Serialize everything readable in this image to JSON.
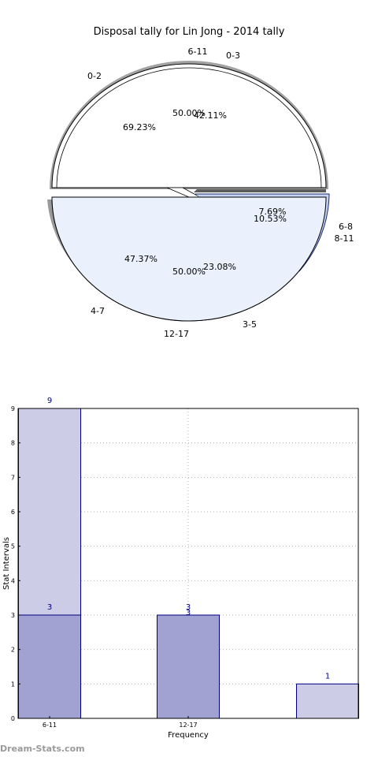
{
  "chart_data": [
    {
      "type": "pie",
      "title": "Disposal tally for Lin Jong - 2014 tally",
      "rings": [
        {
          "name": "",
          "slices": [
            {
              "label": "0-2",
              "value": 69.23,
              "pct_label": "69.23%"
            },
            {
              "label": "6-8",
              "value": 7.69,
              "pct_label": "7.69%"
            },
            {
              "label": "3-5",
              "value": 23.08,
              "pct_label": "23.08%"
            }
          ]
        },
        {
          "name": "",
          "slices": [
            {
              "label": "0-3",
              "value": 42.11,
              "pct_label": "42.11%"
            },
            {
              "label": "8-11",
              "value": 10.53,
              "pct_label": "10.53%"
            },
            {
              "label": "4-7",
              "value": 47.37,
              "pct_label": "47.37%"
            }
          ]
        },
        {
          "name": "",
          "slices": [
            {
              "label": "6-11",
              "value": 50.0,
              "pct_label": "50.00%"
            },
            {
              "label": "12-17",
              "value": 50.0,
              "pct_label": "50.00%"
            }
          ]
        }
      ],
      "colors": {
        "upper": "#ffffff",
        "lower": "#eaf0fc",
        "edge": "#1a2a6c"
      }
    },
    {
      "type": "bar",
      "xlabel": "Frequency",
      "ylabel": "Stat Intervals",
      "categories": [
        "6-11",
        "12-17",
        ""
      ],
      "tick_labels": [
        "6-11",
        "12-17"
      ],
      "ylim": [
        0,
        9
      ],
      "yticks": [
        "0",
        "1",
        "2",
        "3",
        "4",
        "5",
        "6",
        "7",
        "8",
        "9"
      ],
      "grid": true,
      "series": [
        {
          "values": [
            9,
            null,
            1
          ],
          "value_labels": [
            "9",
            "",
            "1"
          ],
          "color": "#cccce6"
        },
        {
          "values": [
            3,
            3,
            null
          ],
          "value_labels": [
            "3",
            "3",
            ""
          ],
          "color": "#a2a2d2"
        }
      ],
      "extra_labels": [
        "3"
      ],
      "edge_color": "#000080"
    }
  ],
  "watermark": "Dream-Stats.com"
}
